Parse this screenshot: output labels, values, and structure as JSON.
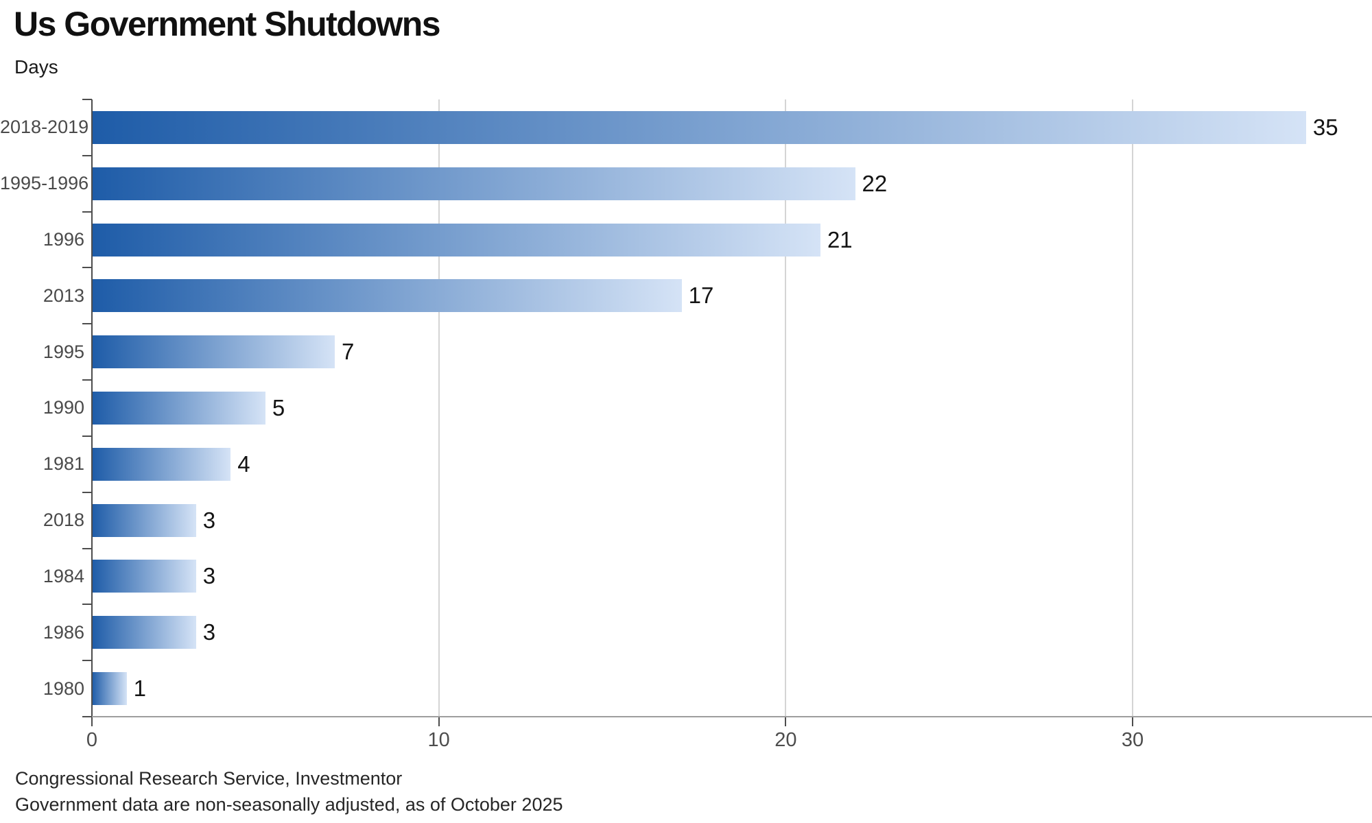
{
  "chart_data": {
    "type": "bar",
    "orientation": "horizontal",
    "title": "Us Government Shutdowns",
    "value_axis_unit": "Days",
    "xlabel": "",
    "ylabel": "",
    "categories": [
      "2018-2019",
      "1995-1996",
      "1996",
      "2013",
      "1995",
      "1990",
      "1981",
      "2018",
      "1984",
      "1986",
      "1980"
    ],
    "values": [
      35,
      22,
      21,
      17,
      7,
      5,
      4,
      3,
      3,
      3,
      1
    ],
    "xticks": [
      0,
      10,
      20,
      30
    ],
    "xlim": [
      0,
      36.9
    ],
    "grid": "vertical gridlines at 10, 20, 30",
    "legend": "none",
    "bar_color_start": "#1e5ca8",
    "bar_color_end": "#d5e3f6",
    "footer": {
      "source": "Congressional Research Service, Investmentor",
      "note": "Government data are non-seasonally adjusted, as of October 2025"
    }
  }
}
